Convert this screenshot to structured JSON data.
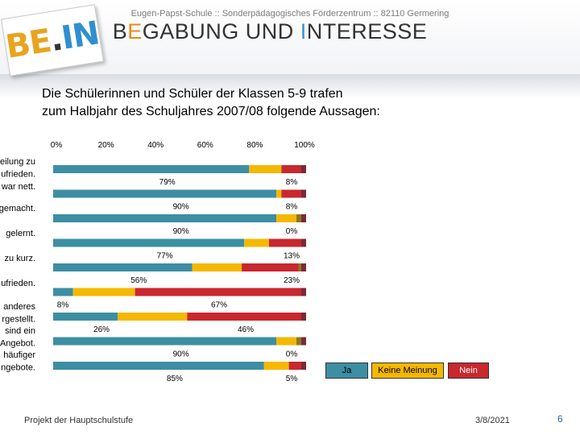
{
  "header": {
    "school": "Eugen-Papst-Schule :: Sonderpädagogisches Förderzentrum :: 82110 Germering",
    "brand_parts": [
      {
        "text": "B",
        "accent": false
      },
      {
        "text": "E",
        "accent": "orange"
      },
      {
        "text": "GABUNG UND ",
        "accent": false
      },
      {
        "text": "I",
        "accent": "blue"
      },
      {
        "text": "NTERESSE",
        "accent": false
      }
    ],
    "logo": {
      "part1": "BE",
      "part2": ".",
      "part3": "IN"
    }
  },
  "subtitle_lines": [
    "Die Schülerinnen und Schüler der Klassen 5-9 trafen",
    "zum Halbjahr des Schuljahres 2007/08 folgende Aussagen:"
  ],
  "chart_data": {
    "type": "bar",
    "orientation": "horizontal",
    "stacked": true,
    "x_ticks": [
      "0%",
      "20%",
      "40%",
      "60%",
      "80%",
      "100%"
    ],
    "xlim": [
      0,
      100
    ],
    "categories": [
      [
        "eilung zu",
        "ufrieden.",
        "war nett."
      ],
      [],
      [
        "gemacht."
      ],
      [
        "gelernt."
      ],
      [
        "zu kurz."
      ],
      [
        "ufrieden."
      ],
      [
        "anderes",
        "rgestellt."
      ],
      [
        "sind ein",
        "Angebot."
      ],
      [
        "häufiger",
        "ngebote."
      ]
    ],
    "series": [
      {
        "name": "Ja",
        "color": "#3d8ea3",
        "values": [
          79,
          90,
          90,
          77,
          56,
          8,
          26,
          90,
          85
        ]
      },
      {
        "name": "Keine Meinung",
        "color": "#f5b800",
        "values": [
          13,
          2,
          8,
          10,
          20,
          25,
          28,
          8,
          10
        ]
      },
      {
        "name": "Nein",
        "color": "#c8282e",
        "values": [
          8,
          8,
          0,
          13,
          23,
          67,
          46,
          0,
          5
        ]
      }
    ],
    "extra_color": "#8a7a1e",
    "extra_values": [
      0,
      0,
      2,
      0,
      1,
      0,
      0,
      2,
      0
    ],
    "value_labels": [
      {
        "ja": "79%",
        "nein": "8%"
      },
      {
        "ja": "90%",
        "nein": "8%"
      },
      {
        "ja": "90%",
        "nein": "0%"
      },
      {
        "ja": "77%",
        "nein": "13%"
      },
      {
        "ja": "56%",
        "nein": "23%"
      },
      {
        "ja": "8%",
        "nein": "67%"
      },
      {
        "ja": "26%",
        "nein": "46%"
      },
      {
        "ja": "90%",
        "nein": "0%"
      },
      {
        "ja": "85%",
        "nein": "5%"
      }
    ],
    "legend": [
      "Ja",
      "Keine Meinung",
      "Nein"
    ],
    "legend_placement": "bottom-right"
  },
  "footer": {
    "left": "Projekt der Hauptschulstufe",
    "date": "3/8/2021",
    "page": "6"
  }
}
